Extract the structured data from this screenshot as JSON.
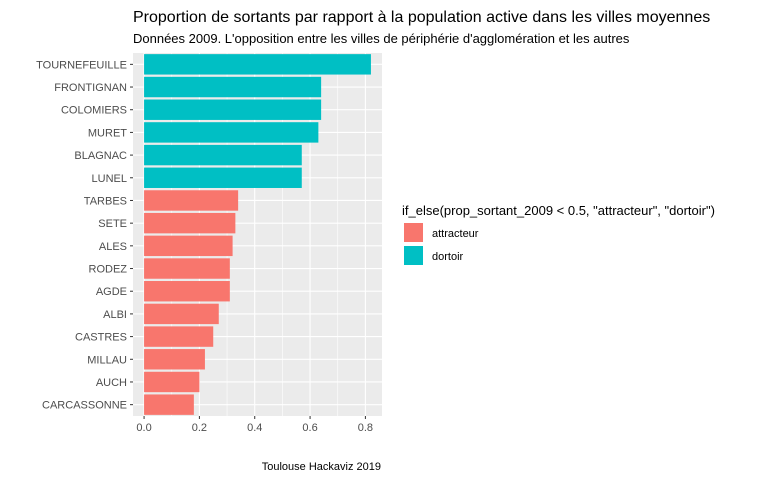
{
  "chart_data": {
    "type": "bar",
    "orientation": "horizontal",
    "title": "Proportion de sortants par rapport à la population active dans les villes moyennes",
    "subtitle": "Données 2009. L'opposition entre les villes de périphérie d'agglomération et les autres",
    "caption": "Toulouse Hackaviz 2019",
    "xlabel": "",
    "ylabel": "",
    "xlim": [
      -0.04,
      0.86
    ],
    "x_ticks": [
      "0.0",
      "0.2",
      "0.4",
      "0.6",
      "0.8"
    ],
    "x_tick_values": [
      0,
      0.2,
      0.4,
      0.6,
      0.8
    ],
    "grid": true,
    "legend": {
      "title": "if_else(prop_sortant_2009 < 0.5, \"attracteur\", \"dortoir\")",
      "placement": "right",
      "entries": [
        {
          "label": "attracteur",
          "color": "#F8766D"
        },
        {
          "label": "dortoir",
          "color": "#00BFC4"
        }
      ]
    },
    "categories": [
      "TOURNEFEUILLE",
      "FRONTIGNAN",
      "COLOMIERS",
      "MURET",
      "BLAGNAC",
      "LUNEL",
      "TARBES",
      "SETE",
      "ALES",
      "RODEZ",
      "AGDE",
      "ALBI",
      "CASTRES",
      "MILLAU",
      "AUCH",
      "CARCASSONNE"
    ],
    "values": [
      0.82,
      0.64,
      0.64,
      0.63,
      0.57,
      0.57,
      0.34,
      0.33,
      0.32,
      0.31,
      0.31,
      0.27,
      0.25,
      0.22,
      0.2,
      0.18
    ],
    "groups": [
      "dortoir",
      "dortoir",
      "dortoir",
      "dortoir",
      "dortoir",
      "dortoir",
      "attracteur",
      "attracteur",
      "attracteur",
      "attracteur",
      "attracteur",
      "attracteur",
      "attracteur",
      "attracteur",
      "attracteur",
      "attracteur"
    ]
  }
}
